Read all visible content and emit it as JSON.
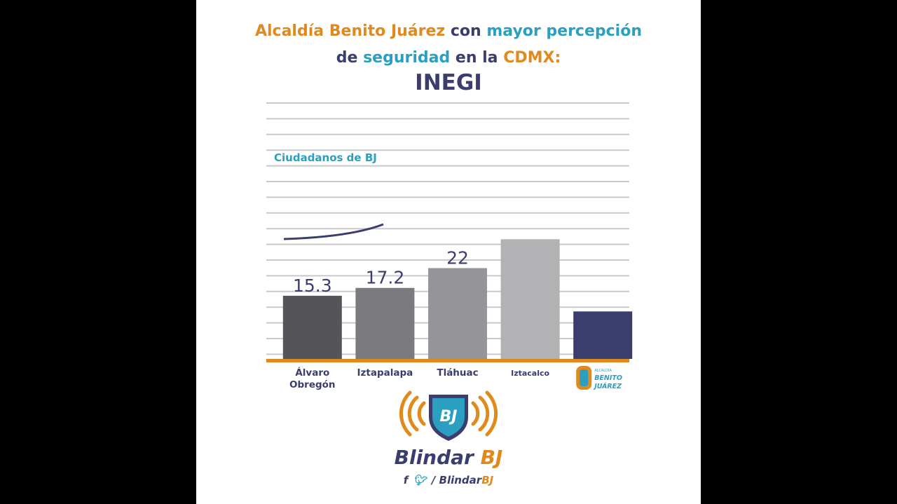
{
  "title": {
    "line1_a": "Alcaldía Benito Juárez",
    "line1_b": " con ",
    "line1_c": "mayor percepción",
    "line2_a": "de ",
    "line2_b": "seguridad",
    "line2_c": " en la ",
    "line2_d": "CDMX:",
    "line3": "INEGI"
  },
  "annotation": "Ciudadanos de BJ",
  "chart_data": {
    "type": "bar",
    "categories": [
      "Álvaro Obregón",
      "Iztapalapa",
      "Tláhuac",
      "Iztacalco",
      "BENITO JUÁREZ"
    ],
    "values": [
      15.3,
      17.2,
      22,
      29,
      11.5
    ],
    "value_labels": [
      "15.3",
      "17.2",
      "22",
      "",
      ""
    ],
    "bar_colors": [
      "#555559",
      "#7a7a7f",
      "#959599",
      "#b2b2b4",
      "#3a3d6e"
    ],
    "ylim": [
      0,
      62
    ],
    "grid": true,
    "baseline_color": "#e08a1e"
  },
  "last_category_logo": {
    "small_text": "ALCALDÍA",
    "name_line1": "BENITO",
    "name_line2": "JUÁREZ"
  },
  "brand": {
    "badge_text": "BJ",
    "name_a": "Blindar ",
    "name_b": "BJ",
    "social_icons": [
      "facebook-icon",
      "twitter-icon"
    ],
    "handle_a": "/ Blindar",
    "handle_b": "BJ"
  },
  "colors": {
    "orange": "#e08a1e",
    "blue": "#2a9fc0",
    "navy": "#3a3d6e"
  }
}
